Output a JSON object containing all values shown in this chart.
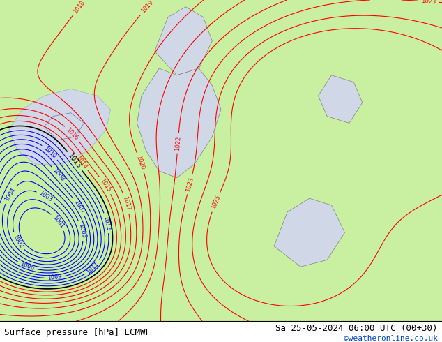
{
  "title_left": "Surface pressure [hPa] ECMWF",
  "title_right": "Sa 25-05-2024 06:00 UTC (00+30)",
  "credit": "©weatheronline.co.uk",
  "bg_color": "#c8f0a0",
  "water_color": "#d0d8e8",
  "fontsize_title": 9,
  "fontsize_credit": 8,
  "pressure_min": 1001,
  "pressure_max": 1025,
  "black_level": 1013,
  "label_fontsize": 6
}
